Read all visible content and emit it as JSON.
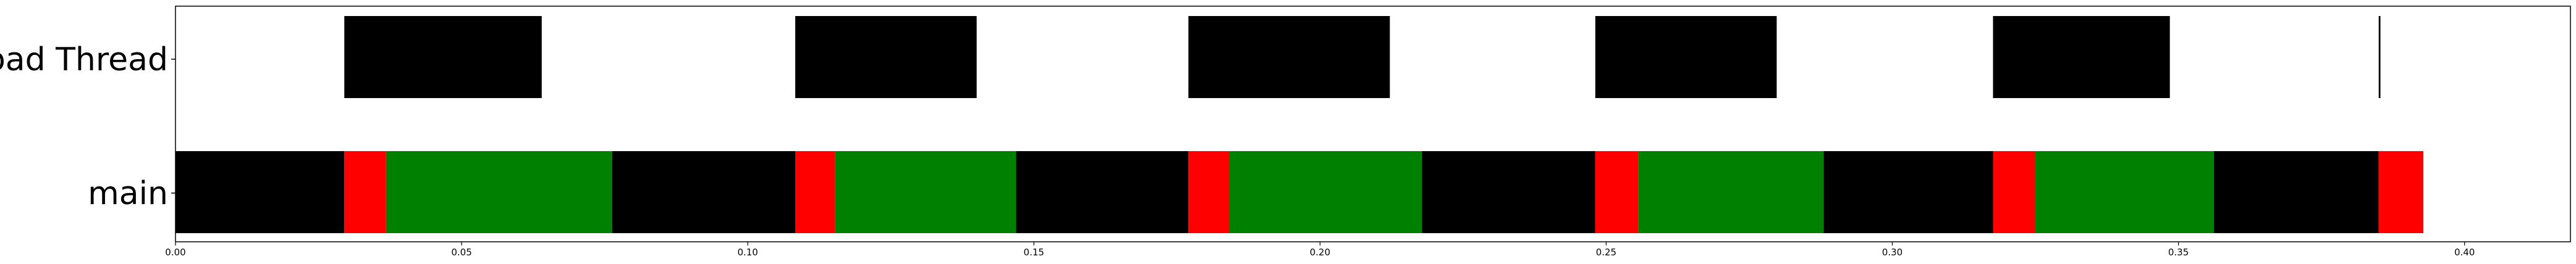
{
  "chart_data": {
    "type": "timeline",
    "title": "",
    "xlabel": "",
    "ylabel": "",
    "xlim": [
      0.0,
      0.4185
    ],
    "grid": false,
    "x_ticks": [
      "0.00",
      "0.05",
      "0.10",
      "0.15",
      "0.20",
      "0.25",
      "0.30",
      "0.35",
      "0.40"
    ],
    "lanes": [
      "load Thread",
      "main"
    ],
    "colors": {
      "black": "#000000",
      "red": "#ff0000",
      "green": "#008000"
    },
    "segments": [
      {
        "lane": "load Thread",
        "start": 0.0295,
        "end": 0.064,
        "color": "#000000"
      },
      {
        "lane": "load Thread",
        "start": 0.1083,
        "end": 0.14,
        "color": "#000000"
      },
      {
        "lane": "load Thread",
        "start": 0.177,
        "end": 0.2122,
        "color": "#000000"
      },
      {
        "lane": "load Thread",
        "start": 0.2481,
        "end": 0.2798,
        "color": "#000000"
      },
      {
        "lane": "load Thread",
        "start": 0.3176,
        "end": 0.3485,
        "color": "#000000"
      },
      {
        "lane": "load Thread",
        "start": 0.385,
        "end": 0.3853,
        "color": "#000000"
      },
      {
        "lane": "main",
        "start": 0.0,
        "end": 0.0295,
        "color": "#000000"
      },
      {
        "lane": "main",
        "start": 0.0295,
        "end": 0.0368,
        "color": "#ff0000"
      },
      {
        "lane": "main",
        "start": 0.0368,
        "end": 0.0763,
        "color": "#008000"
      },
      {
        "lane": "main",
        "start": 0.0763,
        "end": 0.1083,
        "color": "#000000"
      },
      {
        "lane": "main",
        "start": 0.1083,
        "end": 0.1153,
        "color": "#ff0000"
      },
      {
        "lane": "main",
        "start": 0.1153,
        "end": 0.1469,
        "color": "#008000"
      },
      {
        "lane": "main",
        "start": 0.1469,
        "end": 0.177,
        "color": "#000000"
      },
      {
        "lane": "main",
        "start": 0.177,
        "end": 0.1842,
        "color": "#ff0000"
      },
      {
        "lane": "main",
        "start": 0.1842,
        "end": 0.2178,
        "color": "#008000"
      },
      {
        "lane": "main",
        "start": 0.2178,
        "end": 0.2481,
        "color": "#000000"
      },
      {
        "lane": "main",
        "start": 0.2481,
        "end": 0.2556,
        "color": "#ff0000"
      },
      {
        "lane": "main",
        "start": 0.2556,
        "end": 0.288,
        "color": "#008000"
      },
      {
        "lane": "main",
        "start": 0.288,
        "end": 0.3176,
        "color": "#000000"
      },
      {
        "lane": "main",
        "start": 0.3176,
        "end": 0.325,
        "color": "#ff0000"
      },
      {
        "lane": "main",
        "start": 0.325,
        "end": 0.3562,
        "color": "#008000"
      },
      {
        "lane": "main",
        "start": 0.3562,
        "end": 0.385,
        "color": "#000000"
      },
      {
        "lane": "main",
        "start": 0.385,
        "end": 0.3928,
        "color": "#ff0000"
      }
    ]
  }
}
